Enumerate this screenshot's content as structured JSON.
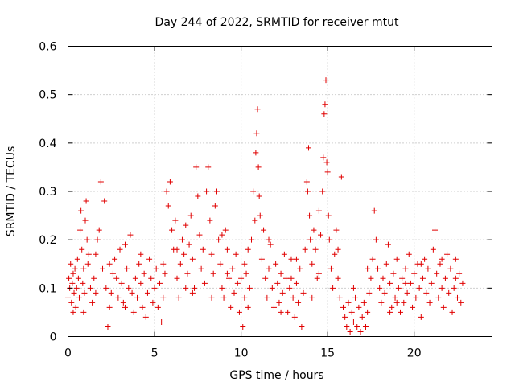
{
  "chart_data": {
    "type": "scatter",
    "title": "Day 244 of 2022, SRMTID for receiver mtut",
    "xlabel": "GPS time / hours",
    "ylabel": "SRMTID / TECUs",
    "xlim": [
      0,
      24.5
    ],
    "ylim": [
      0,
      0.6
    ],
    "xticks": [
      0,
      5,
      10,
      15,
      20
    ],
    "xtick_labels": [
      "0",
      "5",
      "10",
      "15",
      "20"
    ],
    "yticks": [
      0,
      0.1,
      0.2,
      0.3,
      0.4,
      0.5,
      0.6
    ],
    "ytick_labels": [
      "0",
      "0.1",
      "0.2",
      "0.3",
      "0.4",
      "0.5",
      "0.6"
    ],
    "grid": true,
    "marker": "+",
    "color": "#e00000",
    "series": [
      {
        "name": "SRMTID",
        "points": [
          [
            0.0,
            0.08
          ],
          [
            0.05,
            0.12
          ],
          [
            0.1,
            0.1
          ],
          [
            0.15,
            0.15
          ],
          [
            0.2,
            0.07
          ],
          [
            0.25,
            0.11
          ],
          [
            0.3,
            0.13
          ],
          [
            0.35,
            0.09
          ],
          [
            0.4,
            0.14
          ],
          [
            0.45,
            0.06
          ],
          [
            0.5,
            0.1
          ],
          [
            0.55,
            0.16
          ],
          [
            0.6,
            0.12
          ],
          [
            0.65,
            0.08
          ],
          [
            0.7,
            0.22
          ],
          [
            0.75,
            0.26
          ],
          [
            0.8,
            0.18
          ],
          [
            0.85,
            0.11
          ],
          [
            0.9,
            0.05
          ],
          [
            0.95,
            0.09
          ],
          [
            1.0,
            0.24
          ],
          [
            1.05,
            0.28
          ],
          [
            1.1,
            0.2
          ],
          [
            1.15,
            0.15
          ],
          [
            1.2,
            0.17
          ],
          [
            1.3,
            0.1
          ],
          [
            1.4,
            0.07
          ],
          [
            1.5,
            0.12
          ],
          [
            1.6,
            0.17
          ],
          [
            1.7,
            0.2
          ],
          [
            1.8,
            0.22
          ],
          [
            1.9,
            0.32
          ],
          [
            2.0,
            0.14
          ],
          [
            2.1,
            0.28
          ],
          [
            2.2,
            0.1
          ],
          [
            2.3,
            0.02
          ],
          [
            2.4,
            0.06
          ],
          [
            2.5,
            0.09
          ],
          [
            2.6,
            0.13
          ],
          [
            2.7,
            0.16
          ],
          [
            2.8,
            0.12
          ],
          [
            2.9,
            0.08
          ],
          [
            3.0,
            0.18
          ],
          [
            3.1,
            0.11
          ],
          [
            3.2,
            0.07
          ],
          [
            3.3,
            0.19
          ],
          [
            3.4,
            0.14
          ],
          [
            3.5,
            0.1
          ],
          [
            3.6,
            0.21
          ],
          [
            3.7,
            0.09
          ],
          [
            3.8,
            0.05
          ],
          [
            3.9,
            0.12
          ],
          [
            4.0,
            0.08
          ],
          [
            4.1,
            0.15
          ],
          [
            4.2,
            0.11
          ],
          [
            4.3,
            0.06
          ],
          [
            4.4,
            0.13
          ],
          [
            4.5,
            0.04
          ],
          [
            4.6,
            0.09
          ],
          [
            4.7,
            0.16
          ],
          [
            4.8,
            0.12
          ],
          [
            4.9,
            0.07
          ],
          [
            5.0,
            0.1
          ],
          [
            5.1,
            0.14
          ],
          [
            5.2,
            0.06
          ],
          [
            5.3,
            0.11
          ],
          [
            5.4,
            0.03
          ],
          [
            5.5,
            0.08
          ],
          [
            5.6,
            0.13
          ],
          [
            5.7,
            0.3
          ],
          [
            5.8,
            0.27
          ],
          [
            5.9,
            0.32
          ],
          [
            6.0,
            0.22
          ],
          [
            6.1,
            0.18
          ],
          [
            6.2,
            0.24
          ],
          [
            6.3,
            0.12
          ],
          [
            6.4,
            0.08
          ],
          [
            6.5,
            0.15
          ],
          [
            6.6,
            0.2
          ],
          [
            6.7,
            0.17
          ],
          [
            6.8,
            0.23
          ],
          [
            6.9,
            0.13
          ],
          [
            7.0,
            0.19
          ],
          [
            7.1,
            0.25
          ],
          [
            7.2,
            0.16
          ],
          [
            7.3,
            0.1
          ],
          [
            7.4,
            0.35
          ],
          [
            7.5,
            0.29
          ],
          [
            7.6,
            0.21
          ],
          [
            7.7,
            0.14
          ],
          [
            7.8,
            0.18
          ],
          [
            7.9,
            0.11
          ],
          [
            8.0,
            0.3
          ],
          [
            8.1,
            0.35
          ],
          [
            8.2,
            0.24
          ],
          [
            8.3,
            0.17
          ],
          [
            8.4,
            0.13
          ],
          [
            8.5,
            0.27
          ],
          [
            8.6,
            0.3
          ],
          [
            8.7,
            0.2
          ],
          [
            8.8,
            0.15
          ],
          [
            8.9,
            0.1
          ],
          [
            9.0,
            0.08
          ],
          [
            9.1,
            0.22
          ],
          [
            9.2,
            0.18
          ],
          [
            9.3,
            0.12
          ],
          [
            9.4,
            0.06
          ],
          [
            9.5,
            0.14
          ],
          [
            9.6,
            0.09
          ],
          [
            9.7,
            0.17
          ],
          [
            9.8,
            0.11
          ],
          [
            9.9,
            0.05
          ],
          [
            10.0,
            0.12
          ],
          [
            10.1,
            0.02
          ],
          [
            10.2,
            0.08
          ],
          [
            10.3,
            0.13
          ],
          [
            10.4,
            0.18
          ],
          [
            10.5,
            0.1
          ],
          [
            10.6,
            0.2
          ],
          [
            10.7,
            0.3
          ],
          [
            10.8,
            0.24
          ],
          [
            10.85,
            0.38
          ],
          [
            10.9,
            0.42
          ],
          [
            10.95,
            0.47
          ],
          [
            11.0,
            0.35
          ],
          [
            11.05,
            0.29
          ],
          [
            11.1,
            0.25
          ],
          [
            11.2,
            0.16
          ],
          [
            11.3,
            0.22
          ],
          [
            11.4,
            0.12
          ],
          [
            11.5,
            0.08
          ],
          [
            11.6,
            0.14
          ],
          [
            11.7,
            0.19
          ],
          [
            11.8,
            0.1
          ],
          [
            11.9,
            0.06
          ],
          [
            12.0,
            0.15
          ],
          [
            12.1,
            0.11
          ],
          [
            12.2,
            0.07
          ],
          [
            12.3,
            0.13
          ],
          [
            12.4,
            0.09
          ],
          [
            12.5,
            0.17
          ],
          [
            12.6,
            0.12
          ],
          [
            12.7,
            0.05
          ],
          [
            12.8,
            0.1
          ],
          [
            12.9,
            0.16
          ],
          [
            13.0,
            0.08
          ],
          [
            13.1,
            0.04
          ],
          [
            13.2,
            0.11
          ],
          [
            13.3,
            0.07
          ],
          [
            13.4,
            0.14
          ],
          [
            13.5,
            0.02
          ],
          [
            13.6,
            0.09
          ],
          [
            13.7,
            0.18
          ],
          [
            13.8,
            0.32
          ],
          [
            13.85,
            0.3
          ],
          [
            13.9,
            0.39
          ],
          [
            13.95,
            0.25
          ],
          [
            14.0,
            0.2
          ],
          [
            14.1,
            0.15
          ],
          [
            14.2,
            0.22
          ],
          [
            14.3,
            0.18
          ],
          [
            14.4,
            0.12
          ],
          [
            14.5,
            0.26
          ],
          [
            14.6,
            0.21
          ],
          [
            14.7,
            0.3
          ],
          [
            14.75,
            0.37
          ],
          [
            14.8,
            0.46
          ],
          [
            14.85,
            0.48
          ],
          [
            14.9,
            0.53
          ],
          [
            14.95,
            0.36
          ],
          [
            15.0,
            0.34
          ],
          [
            15.05,
            0.25
          ],
          [
            15.1,
            0.2
          ],
          [
            15.2,
            0.14
          ],
          [
            15.3,
            0.1
          ],
          [
            15.4,
            0.17
          ],
          [
            15.5,
            0.22
          ],
          [
            15.6,
            0.12
          ],
          [
            15.7,
            0.08
          ],
          [
            15.8,
            0.33
          ],
          [
            15.9,
            0.06
          ],
          [
            16.0,
            0.04
          ],
          [
            16.1,
            0.02
          ],
          [
            16.2,
            0.07
          ],
          [
            16.3,
            0.01
          ],
          [
            16.4,
            0.05
          ],
          [
            16.5,
            0.03
          ],
          [
            16.6,
            0.08
          ],
          [
            16.7,
            0.02
          ],
          [
            16.8,
            0.06
          ],
          [
            16.9,
            0.01
          ],
          [
            17.0,
            0.04
          ],
          [
            17.1,
            0.07
          ],
          [
            17.2,
            0.02
          ],
          [
            17.3,
            0.05
          ],
          [
            17.4,
            0.09
          ],
          [
            17.5,
            0.12
          ],
          [
            17.6,
            0.16
          ],
          [
            17.7,
            0.26
          ],
          [
            17.8,
            0.2
          ],
          [
            17.9,
            0.14
          ],
          [
            18.0,
            0.1
          ],
          [
            18.1,
            0.07
          ],
          [
            18.2,
            0.12
          ],
          [
            18.3,
            0.09
          ],
          [
            18.4,
            0.15
          ],
          [
            18.5,
            0.19
          ],
          [
            18.6,
            0.11
          ],
          [
            18.7,
            0.06
          ],
          [
            18.8,
            0.13
          ],
          [
            18.9,
            0.08
          ],
          [
            19.0,
            0.16
          ],
          [
            19.1,
            0.1
          ],
          [
            19.2,
            0.05
          ],
          [
            19.3,
            0.12
          ],
          [
            19.4,
            0.07
          ],
          [
            19.5,
            0.14
          ],
          [
            19.6,
            0.09
          ],
          [
            19.7,
            0.17
          ],
          [
            19.8,
            0.11
          ],
          [
            19.9,
            0.06
          ],
          [
            20.0,
            0.13
          ],
          [
            20.1,
            0.08
          ],
          [
            20.2,
            0.15
          ],
          [
            20.3,
            0.1
          ],
          [
            20.4,
            0.04
          ],
          [
            20.5,
            0.12
          ],
          [
            20.6,
            0.16
          ],
          [
            20.7,
            0.09
          ],
          [
            20.8,
            0.14
          ],
          [
            20.9,
            0.07
          ],
          [
            21.0,
            0.11
          ],
          [
            21.1,
            0.18
          ],
          [
            21.2,
            0.22
          ],
          [
            21.3,
            0.13
          ],
          [
            21.4,
            0.08
          ],
          [
            21.5,
            0.15
          ],
          [
            21.6,
            0.1
          ],
          [
            21.7,
            0.06
          ],
          [
            21.8,
            0.12
          ],
          [
            21.9,
            0.17
          ],
          [
            22.0,
            0.09
          ],
          [
            22.1,
            0.14
          ],
          [
            22.2,
            0.05
          ],
          [
            22.3,
            0.1
          ],
          [
            22.4,
            0.16
          ],
          [
            22.5,
            0.08
          ],
          [
            22.6,
            0.13
          ],
          [
            22.7,
            0.07
          ],
          [
            22.8,
            0.11
          ],
          [
            0.3,
            0.05
          ],
          [
            0.9,
            0.14
          ],
          [
            1.6,
            0.09
          ],
          [
            2.4,
            0.15
          ],
          [
            3.3,
            0.06
          ],
          [
            4.2,
            0.17
          ],
          [
            5.5,
            0.15
          ],
          [
            6.3,
            0.18
          ],
          [
            7.2,
            0.09
          ],
          [
            8.3,
            0.08
          ],
          [
            9.2,
            0.13
          ],
          [
            10.4,
            0.06
          ],
          [
            11.6,
            0.2
          ],
          [
            12.3,
            0.05
          ],
          [
            13.2,
            0.16
          ],
          [
            14.1,
            0.08
          ],
          [
            15.6,
            0.18
          ],
          [
            16.5,
            0.1
          ],
          [
            17.3,
            0.14
          ],
          [
            18.6,
            0.05
          ],
          [
            19.5,
            0.11
          ],
          [
            20.4,
            0.15
          ],
          [
            21.6,
            0.16
          ],
          [
            22.4,
            0.12
          ],
          [
            6.8,
            0.1
          ],
          [
            8.9,
            0.21
          ],
          [
            10.2,
            0.15
          ],
          [
            12.9,
            0.12
          ],
          [
            14.5,
            0.13
          ],
          [
            19.0,
            0.07
          ]
        ]
      }
    ]
  }
}
